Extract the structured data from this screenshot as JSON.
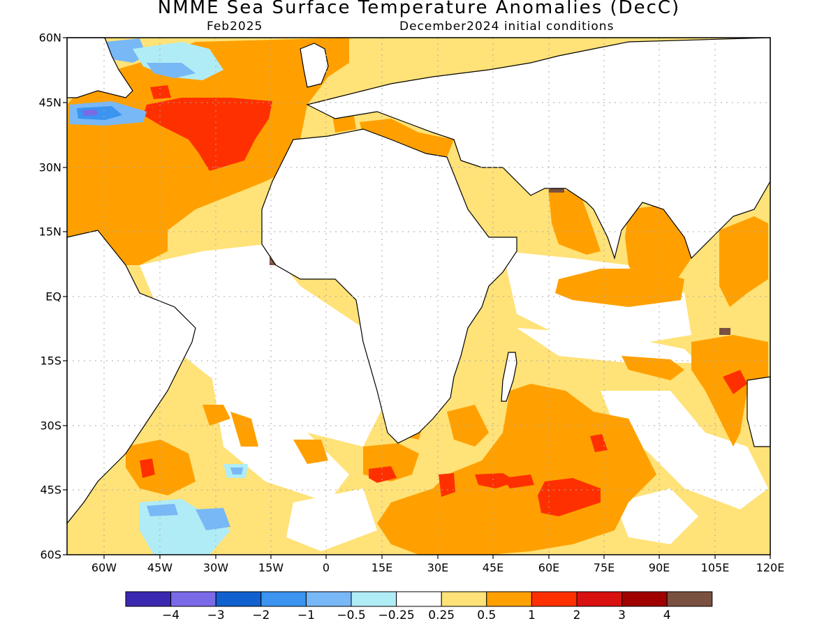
{
  "title": "NMME Sea Surface Temperature Anomalies (DecC)",
  "valid_month": "Feb2025",
  "init_conditions": "December2024 initial conditions",
  "lat_labels": [
    "60N",
    "45N",
    "30N",
    "15N",
    "EQ",
    "15S",
    "30S",
    "45S",
    "60S"
  ],
  "lon_labels": [
    "60W",
    "45W",
    "30W",
    "15W",
    "0",
    "15E",
    "30E",
    "45E",
    "60E",
    "75E",
    "90E",
    "105E",
    "120E"
  ],
  "colorbar": {
    "colors": [
      "#3b28b0",
      "#7a6ae8",
      "#1060d0",
      "#3a94f0",
      "#78b8f6",
      "#b0ecf6",
      "#ffffff",
      "#ffe278",
      "#ffa000",
      "#ff3000",
      "#d81010",
      "#a00000",
      "#7a5040"
    ],
    "ticks": [
      "−4",
      "−3",
      "−2",
      "−1",
      "−0.5",
      "−0.25",
      "0.25",
      "0.5",
      "1",
      "2",
      "3",
      "4"
    ]
  },
  "colors": {
    "land": "#ffffff",
    "coast": "#000000",
    "grid": "#aaaaaa"
  }
}
